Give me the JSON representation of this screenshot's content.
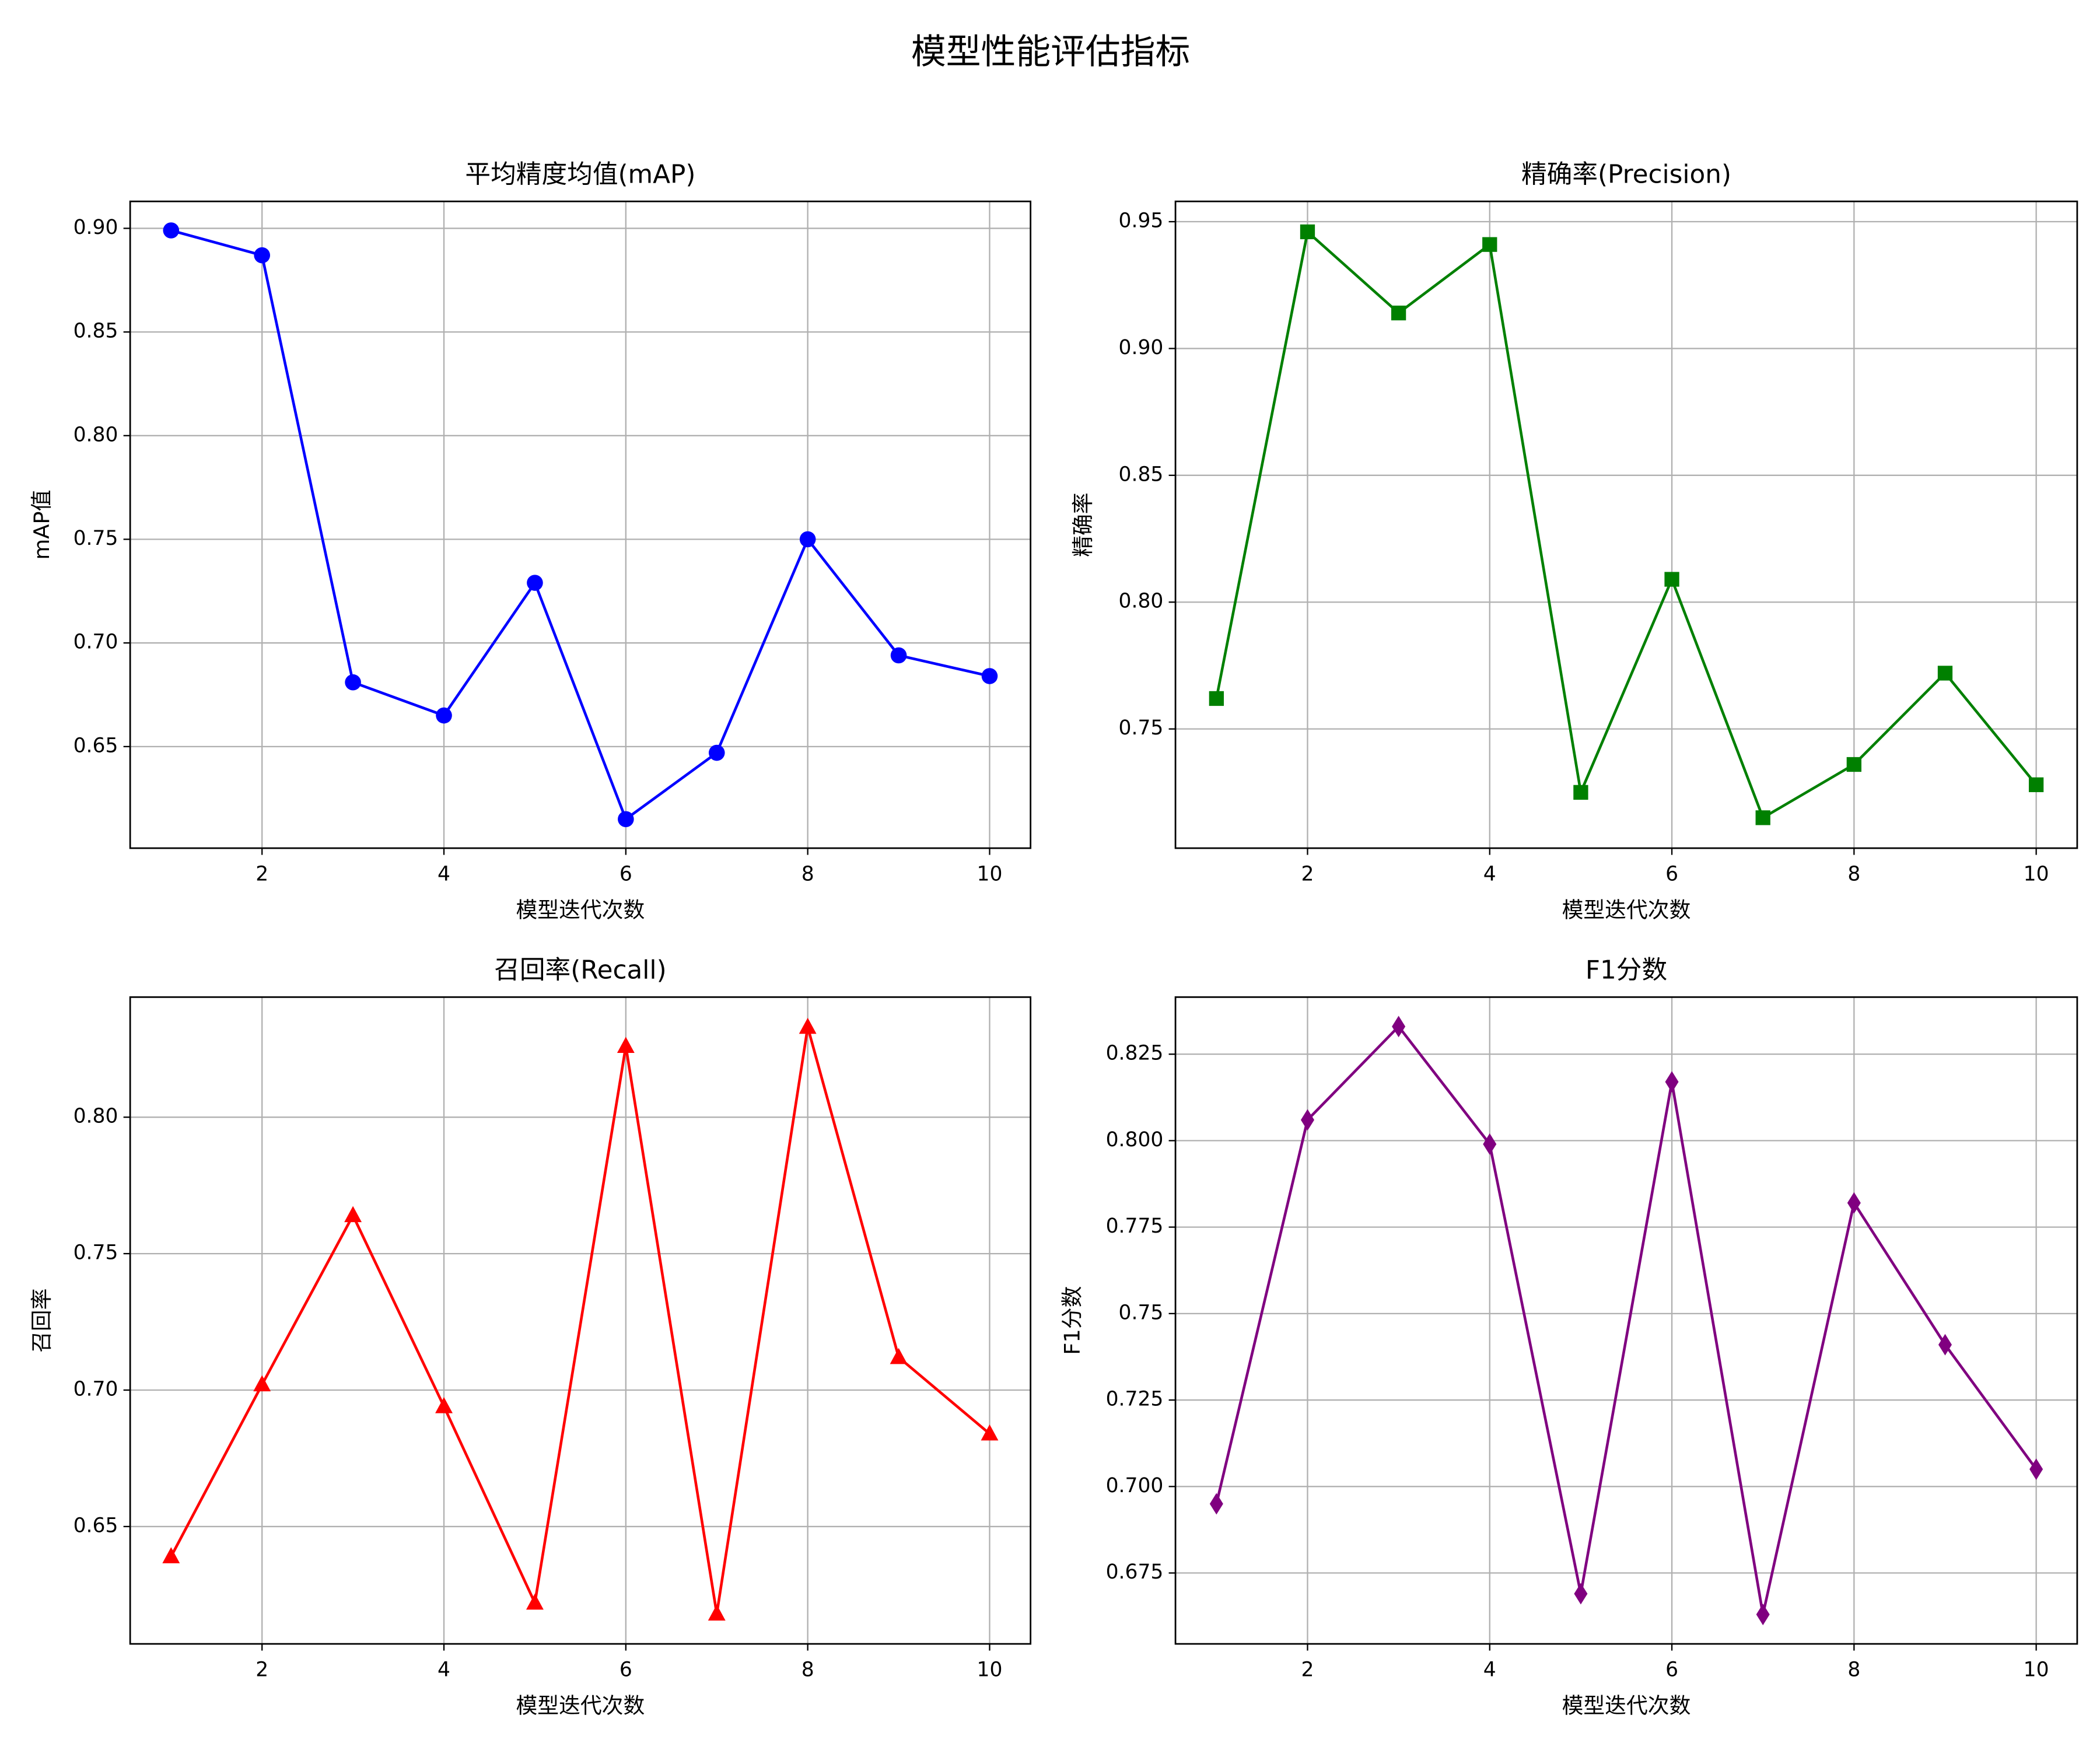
{
  "title": "模型性能评估指标",
  "chart_data": [
    {
      "type": "line",
      "title": "平均精度均值(mAP)",
      "x_label": "模型迭代次数",
      "y_label": "mAP值",
      "x": [
        1,
        2,
        3,
        4,
        5,
        6,
        7,
        8,
        9,
        10
      ],
      "values": [
        0.899,
        0.887,
        0.681,
        0.665,
        0.729,
        0.615,
        0.647,
        0.75,
        0.694,
        0.684
      ],
      "color": "#0000ff",
      "marker": "circle",
      "xlim": [
        0.55,
        10.45
      ],
      "xticks": [
        2,
        4,
        6,
        8,
        10
      ],
      "ylim": [
        0.601,
        0.913
      ],
      "yticks": [
        {
          "value": 0.65,
          "label": "0.65"
        },
        {
          "value": 0.7,
          "label": "0.70"
        },
        {
          "value": 0.75,
          "label": "0.75"
        },
        {
          "value": 0.8,
          "label": "0.80"
        },
        {
          "value": 0.85,
          "label": "0.85"
        },
        {
          "value": 0.9,
          "label": "0.90"
        }
      ],
      "grid": true
    },
    {
      "type": "line",
      "title": "精确率(Precision)",
      "x_label": "模型迭代次数",
      "y_label": "精确率",
      "x": [
        1,
        2,
        3,
        4,
        5,
        6,
        7,
        8,
        9,
        10
      ],
      "values": [
        0.762,
        0.946,
        0.914,
        0.941,
        0.725,
        0.809,
        0.715,
        0.736,
        0.772,
        0.728
      ],
      "color": "#008000",
      "marker": "square",
      "xlim": [
        0.55,
        10.45
      ],
      "xticks": [
        2,
        4,
        6,
        8,
        10
      ],
      "ylim": [
        0.703,
        0.958
      ],
      "yticks": [
        {
          "value": 0.75,
          "label": "0.75"
        },
        {
          "value": 0.8,
          "label": "0.80"
        },
        {
          "value": 0.85,
          "label": "0.85"
        },
        {
          "value": 0.9,
          "label": "0.90"
        },
        {
          "value": 0.95,
          "label": "0.95"
        }
      ],
      "grid": true
    },
    {
      "type": "line",
      "title": "召回率(Recall)",
      "x_label": "模型迭代次数",
      "y_label": "召回率",
      "x": [
        1,
        2,
        3,
        4,
        5,
        6,
        7,
        8,
        9,
        10
      ],
      "values": [
        0.639,
        0.702,
        0.764,
        0.694,
        0.622,
        0.826,
        0.618,
        0.833,
        0.712,
        0.684
      ],
      "color": "#ff0000",
      "marker": "triangle",
      "xlim": [
        0.55,
        10.45
      ],
      "xticks": [
        2,
        4,
        6,
        8,
        10
      ],
      "ylim": [
        0.607,
        0.844
      ],
      "yticks": [
        {
          "value": 0.65,
          "label": "0.65"
        },
        {
          "value": 0.7,
          "label": "0.70"
        },
        {
          "value": 0.75,
          "label": "0.75"
        },
        {
          "value": 0.8,
          "label": "0.80"
        }
      ],
      "grid": true
    },
    {
      "type": "line",
      "title": "F1分数",
      "x_label": "模型迭代次数",
      "y_label": "F1分数",
      "x": [
        1,
        2,
        3,
        4,
        5,
        6,
        7,
        8,
        9,
        10
      ],
      "values": [
        0.695,
        0.806,
        0.833,
        0.799,
        0.669,
        0.817,
        0.663,
        0.782,
        0.741,
        0.705
      ],
      "color": "#800080",
      "marker": "diamond",
      "xlim": [
        0.55,
        10.45
      ],
      "xticks": [
        2,
        4,
        6,
        8,
        10
      ],
      "ylim": [
        0.6545,
        0.8415
      ],
      "yticks": [
        0.675,
        {
          "value": 0.7,
          "label": "0.700"
        },
        0.725,
        0.75,
        0.775,
        {
          "value": 0.8,
          "label": "0.800"
        },
        0.825
      ],
      "grid": true
    }
  ]
}
